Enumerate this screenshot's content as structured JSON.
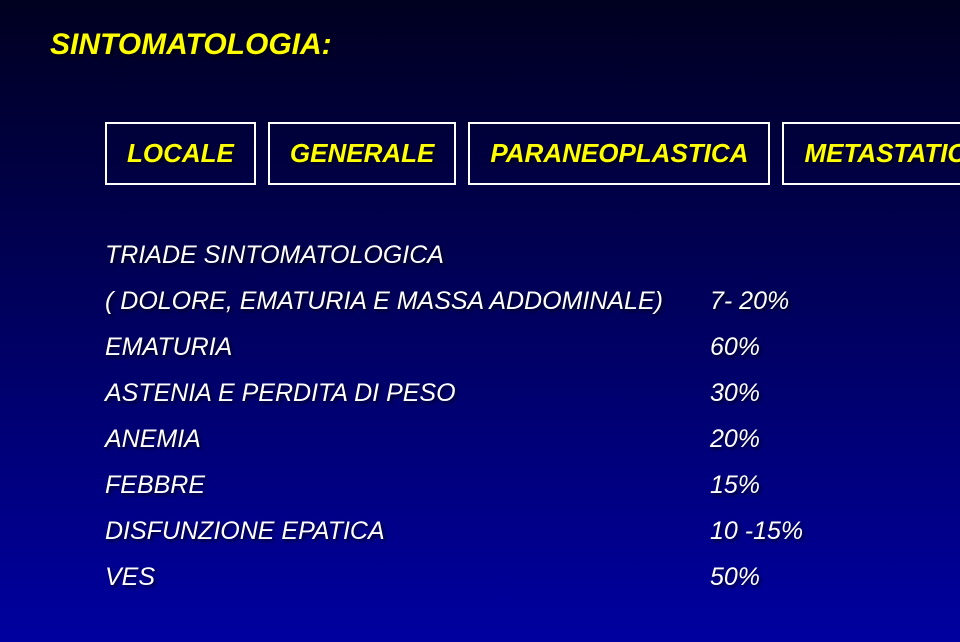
{
  "title": "SINTOMATOLOGIA:",
  "boxes": {
    "b0": "LOCALE",
    "b1": "GENERALE",
    "b2": "PARANEOPLASTICA",
    "b3": "METASTATICA"
  },
  "rows": {
    "r0": {
      "label": "TRIADE SINTOMATOLOGICA",
      "value": ""
    },
    "r1": {
      "label": "( DOLORE, EMATURIA E MASSA ADDOMINALE)",
      "value": "7- 20%"
    },
    "r2": {
      "label": "EMATURIA",
      "value": "60%"
    },
    "r3": {
      "label": "ASTENIA E PERDITA DI PESO",
      "value": "30%"
    },
    "r4": {
      "label": "ANEMIA",
      "value": "20%"
    },
    "r5": {
      "label": "FEBBRE",
      "value": "15%"
    },
    "r6": {
      "label": "DISFUNZIONE EPATICA",
      "value": "10 -15%"
    },
    "r7": {
      "label": "VES",
      "value": "50%"
    }
  },
  "colors": {
    "title_color": "#ffff00",
    "box_text_color": "#ffff00",
    "box_border_color": "#ffffff",
    "row_text_color": "#ffffff",
    "bg_top": "#000020",
    "bg_mid": "#000060",
    "bg_bottom": "#0000a0"
  }
}
